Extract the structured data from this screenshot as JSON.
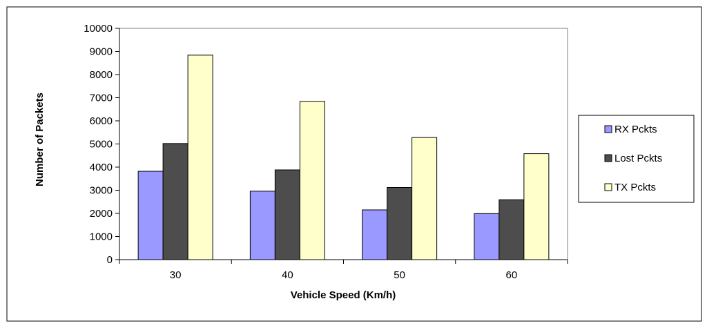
{
  "chart_data": {
    "type": "bar",
    "title": "",
    "xlabel": "Vehicle Speed (Km/h)",
    "ylabel": "Number of Packets",
    "categories": [
      "30",
      "40",
      "50",
      "60"
    ],
    "ylim": [
      0,
      10000
    ],
    "yticks": [
      0,
      1000,
      2000,
      3000,
      4000,
      5000,
      6000,
      7000,
      8000,
      9000,
      10000
    ],
    "grid": false,
    "legend_position": "right",
    "series": [
      {
        "name": "RX Pckts",
        "color": "#9999ff",
        "values": [
          3820,
          2960,
          2150,
          1990
        ]
      },
      {
        "name": "Lost Pckts",
        "color": "#4d4d4d",
        "values": [
          5020,
          3880,
          3120,
          2590
        ]
      },
      {
        "name": "TX Pckts",
        "color": "#ffffcc",
        "values": [
          8840,
          6840,
          5280,
          4580
        ]
      }
    ]
  }
}
